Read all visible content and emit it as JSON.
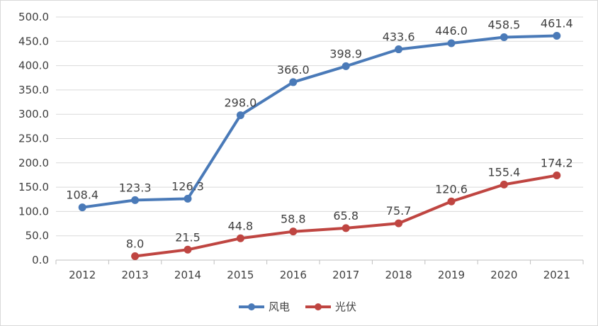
{
  "chart_data": {
    "type": "line",
    "title": "",
    "xlabel": "",
    "ylabel": "",
    "categories": [
      "2012",
      "2013",
      "2014",
      "2015",
      "2016",
      "2017",
      "2018",
      "2019",
      "2020",
      "2021"
    ],
    "ylim": [
      0,
      500
    ],
    "ytick_step": 50,
    "ytick_labels": [
      "0.0",
      "50.0",
      "100.0",
      "150.0",
      "200.0",
      "250.0",
      "300.0",
      "350.0",
      "400.0",
      "450.0",
      "500.0"
    ],
    "grid": true,
    "legend_position": "bottom",
    "series": [
      {
        "name": "风电",
        "color": "#4a7ab8",
        "values": [
          108.4,
          123.3,
          126.3,
          298.0,
          366.0,
          398.9,
          433.6,
          446.0,
          458.5,
          461.4
        ],
        "labels": [
          "108.4",
          "123.3",
          "126.3",
          "298.0",
          "366.0",
          "398.9",
          "433.6",
          "446.0",
          "458.5",
          "461.4"
        ]
      },
      {
        "name": "光伏",
        "color": "#bf4541",
        "values": [
          null,
          8.0,
          21.5,
          44.8,
          58.8,
          65.8,
          75.7,
          120.6,
          155.4,
          174.2
        ],
        "labels": [
          "",
          "8.0",
          "21.5",
          "44.8",
          "58.8",
          "65.8",
          "75.7",
          "120.6",
          "155.4",
          "174.2"
        ]
      }
    ]
  }
}
